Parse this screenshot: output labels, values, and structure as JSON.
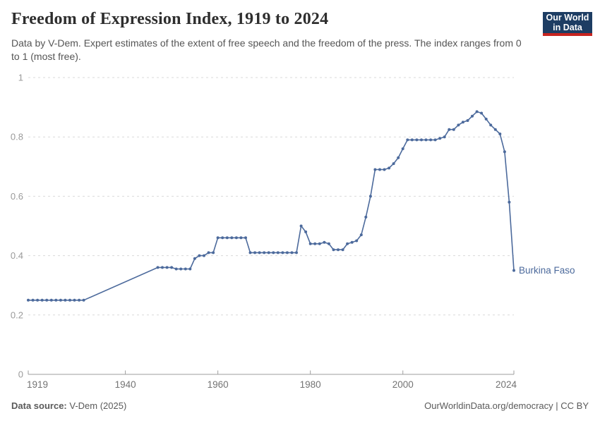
{
  "header": {
    "title": "Freedom of Expression Index, 1919 to 2024",
    "subtitle": "Data by V-Dem. Expert estimates of the extent of free speech and the freedom of the press. The index ranges from 0 to 1 (most free).",
    "logo_line1": "Our World",
    "logo_line2": "in Data"
  },
  "chart_data": {
    "type": "line",
    "title": "Freedom of Expression Index, 1919 to 2024",
    "entity": "Burkina Faso",
    "xlabel": "",
    "ylabel": "",
    "xlim": [
      1919,
      2024
    ],
    "ylim": [
      0,
      1
    ],
    "grid": "horizontal-dashed",
    "legend_position": "end-of-line-label",
    "xticks": [
      {
        "v": 1919,
        "label": "1919",
        "align": "start"
      },
      {
        "v": 1940,
        "label": "1940",
        "align": "middle"
      },
      {
        "v": 1960,
        "label": "1960",
        "align": "middle"
      },
      {
        "v": 1980,
        "label": "1980",
        "align": "middle"
      },
      {
        "v": 2000,
        "label": "2000",
        "align": "middle"
      },
      {
        "v": 2024,
        "label": "2024",
        "align": "end"
      }
    ],
    "yticks": [
      {
        "v": 0,
        "label": "0"
      },
      {
        "v": 0.2,
        "label": "0.2"
      },
      {
        "v": 0.4,
        "label": "0.4"
      },
      {
        "v": 0.6,
        "label": "0.6"
      },
      {
        "v": 0.8,
        "label": "0.8"
      },
      {
        "v": 1,
        "label": "1"
      }
    ],
    "data_gap_note": "no data 1932-1946; straight interpolated segment without markers",
    "series": [
      {
        "name": "Burkina Faso",
        "color": "#4C6A9C",
        "points": [
          [
            1919,
            0.25
          ],
          [
            1920,
            0.25
          ],
          [
            1921,
            0.25
          ],
          [
            1922,
            0.25
          ],
          [
            1923,
            0.25
          ],
          [
            1924,
            0.25
          ],
          [
            1925,
            0.25
          ],
          [
            1926,
            0.25
          ],
          [
            1927,
            0.25
          ],
          [
            1928,
            0.25
          ],
          [
            1929,
            0.25
          ],
          [
            1930,
            0.25
          ],
          [
            1931,
            0.25
          ],
          [
            1947,
            0.36
          ],
          [
            1948,
            0.36
          ],
          [
            1949,
            0.36
          ],
          [
            1950,
            0.36
          ],
          [
            1951,
            0.355
          ],
          [
            1952,
            0.355
          ],
          [
            1953,
            0.355
          ],
          [
            1954,
            0.355
          ],
          [
            1955,
            0.39
          ],
          [
            1956,
            0.4
          ],
          [
            1957,
            0.4
          ],
          [
            1958,
            0.41
          ],
          [
            1959,
            0.41
          ],
          [
            1960,
            0.46
          ],
          [
            1961,
            0.46
          ],
          [
            1962,
            0.46
          ],
          [
            1963,
            0.46
          ],
          [
            1964,
            0.46
          ],
          [
            1965,
            0.46
          ],
          [
            1966,
            0.46
          ],
          [
            1967,
            0.41
          ],
          [
            1968,
            0.41
          ],
          [
            1969,
            0.41
          ],
          [
            1970,
            0.41
          ],
          [
            1971,
            0.41
          ],
          [
            1972,
            0.41
          ],
          [
            1973,
            0.41
          ],
          [
            1974,
            0.41
          ],
          [
            1975,
            0.41
          ],
          [
            1976,
            0.41
          ],
          [
            1977,
            0.41
          ],
          [
            1978,
            0.5
          ],
          [
            1979,
            0.48
          ],
          [
            1980,
            0.44
          ],
          [
            1981,
            0.44
          ],
          [
            1982,
            0.44
          ],
          [
            1983,
            0.445
          ],
          [
            1984,
            0.44
          ],
          [
            1985,
            0.42
          ],
          [
            1986,
            0.42
          ],
          [
            1987,
            0.42
          ],
          [
            1988,
            0.44
          ],
          [
            1989,
            0.445
          ],
          [
            1990,
            0.45
          ],
          [
            1991,
            0.47
          ],
          [
            1992,
            0.53
          ],
          [
            1993,
            0.6
          ],
          [
            1994,
            0.69
          ],
          [
            1995,
            0.69
          ],
          [
            1996,
            0.69
          ],
          [
            1997,
            0.695
          ],
          [
            1998,
            0.71
          ],
          [
            1999,
            0.73
          ],
          [
            2000,
            0.76
          ],
          [
            2001,
            0.79
          ],
          [
            2002,
            0.79
          ],
          [
            2003,
            0.79
          ],
          [
            2004,
            0.79
          ],
          [
            2005,
            0.79
          ],
          [
            2006,
            0.79
          ],
          [
            2007,
            0.79
          ],
          [
            2008,
            0.795
          ],
          [
            2009,
            0.8
          ],
          [
            2010,
            0.825
          ],
          [
            2011,
            0.825
          ],
          [
            2012,
            0.84
          ],
          [
            2013,
            0.85
          ],
          [
            2014,
            0.855
          ],
          [
            2015,
            0.87
          ],
          [
            2016,
            0.885
          ],
          [
            2017,
            0.88
          ],
          [
            2018,
            0.86
          ],
          [
            2019,
            0.84
          ],
          [
            2020,
            0.825
          ],
          [
            2021,
            0.81
          ],
          [
            2022,
            0.75
          ],
          [
            2023,
            0.58
          ],
          [
            2024,
            0.35
          ]
        ]
      }
    ]
  },
  "footer": {
    "source_label": "Data source:",
    "source_value": "V-Dem (2025)",
    "attribution": "OurWorldinData.org/democracy | CC BY"
  },
  "colors": {
    "line": "#4C6A9C",
    "entity_label": "#4C6A9C",
    "grid": "#d9d9d9",
    "axis": "#9e9e9e",
    "logo_bg": "#1d3d63",
    "logo_stripe": "#c7241f",
    "title_text": "#2e2e2e",
    "subtitle_text": "#555555"
  }
}
